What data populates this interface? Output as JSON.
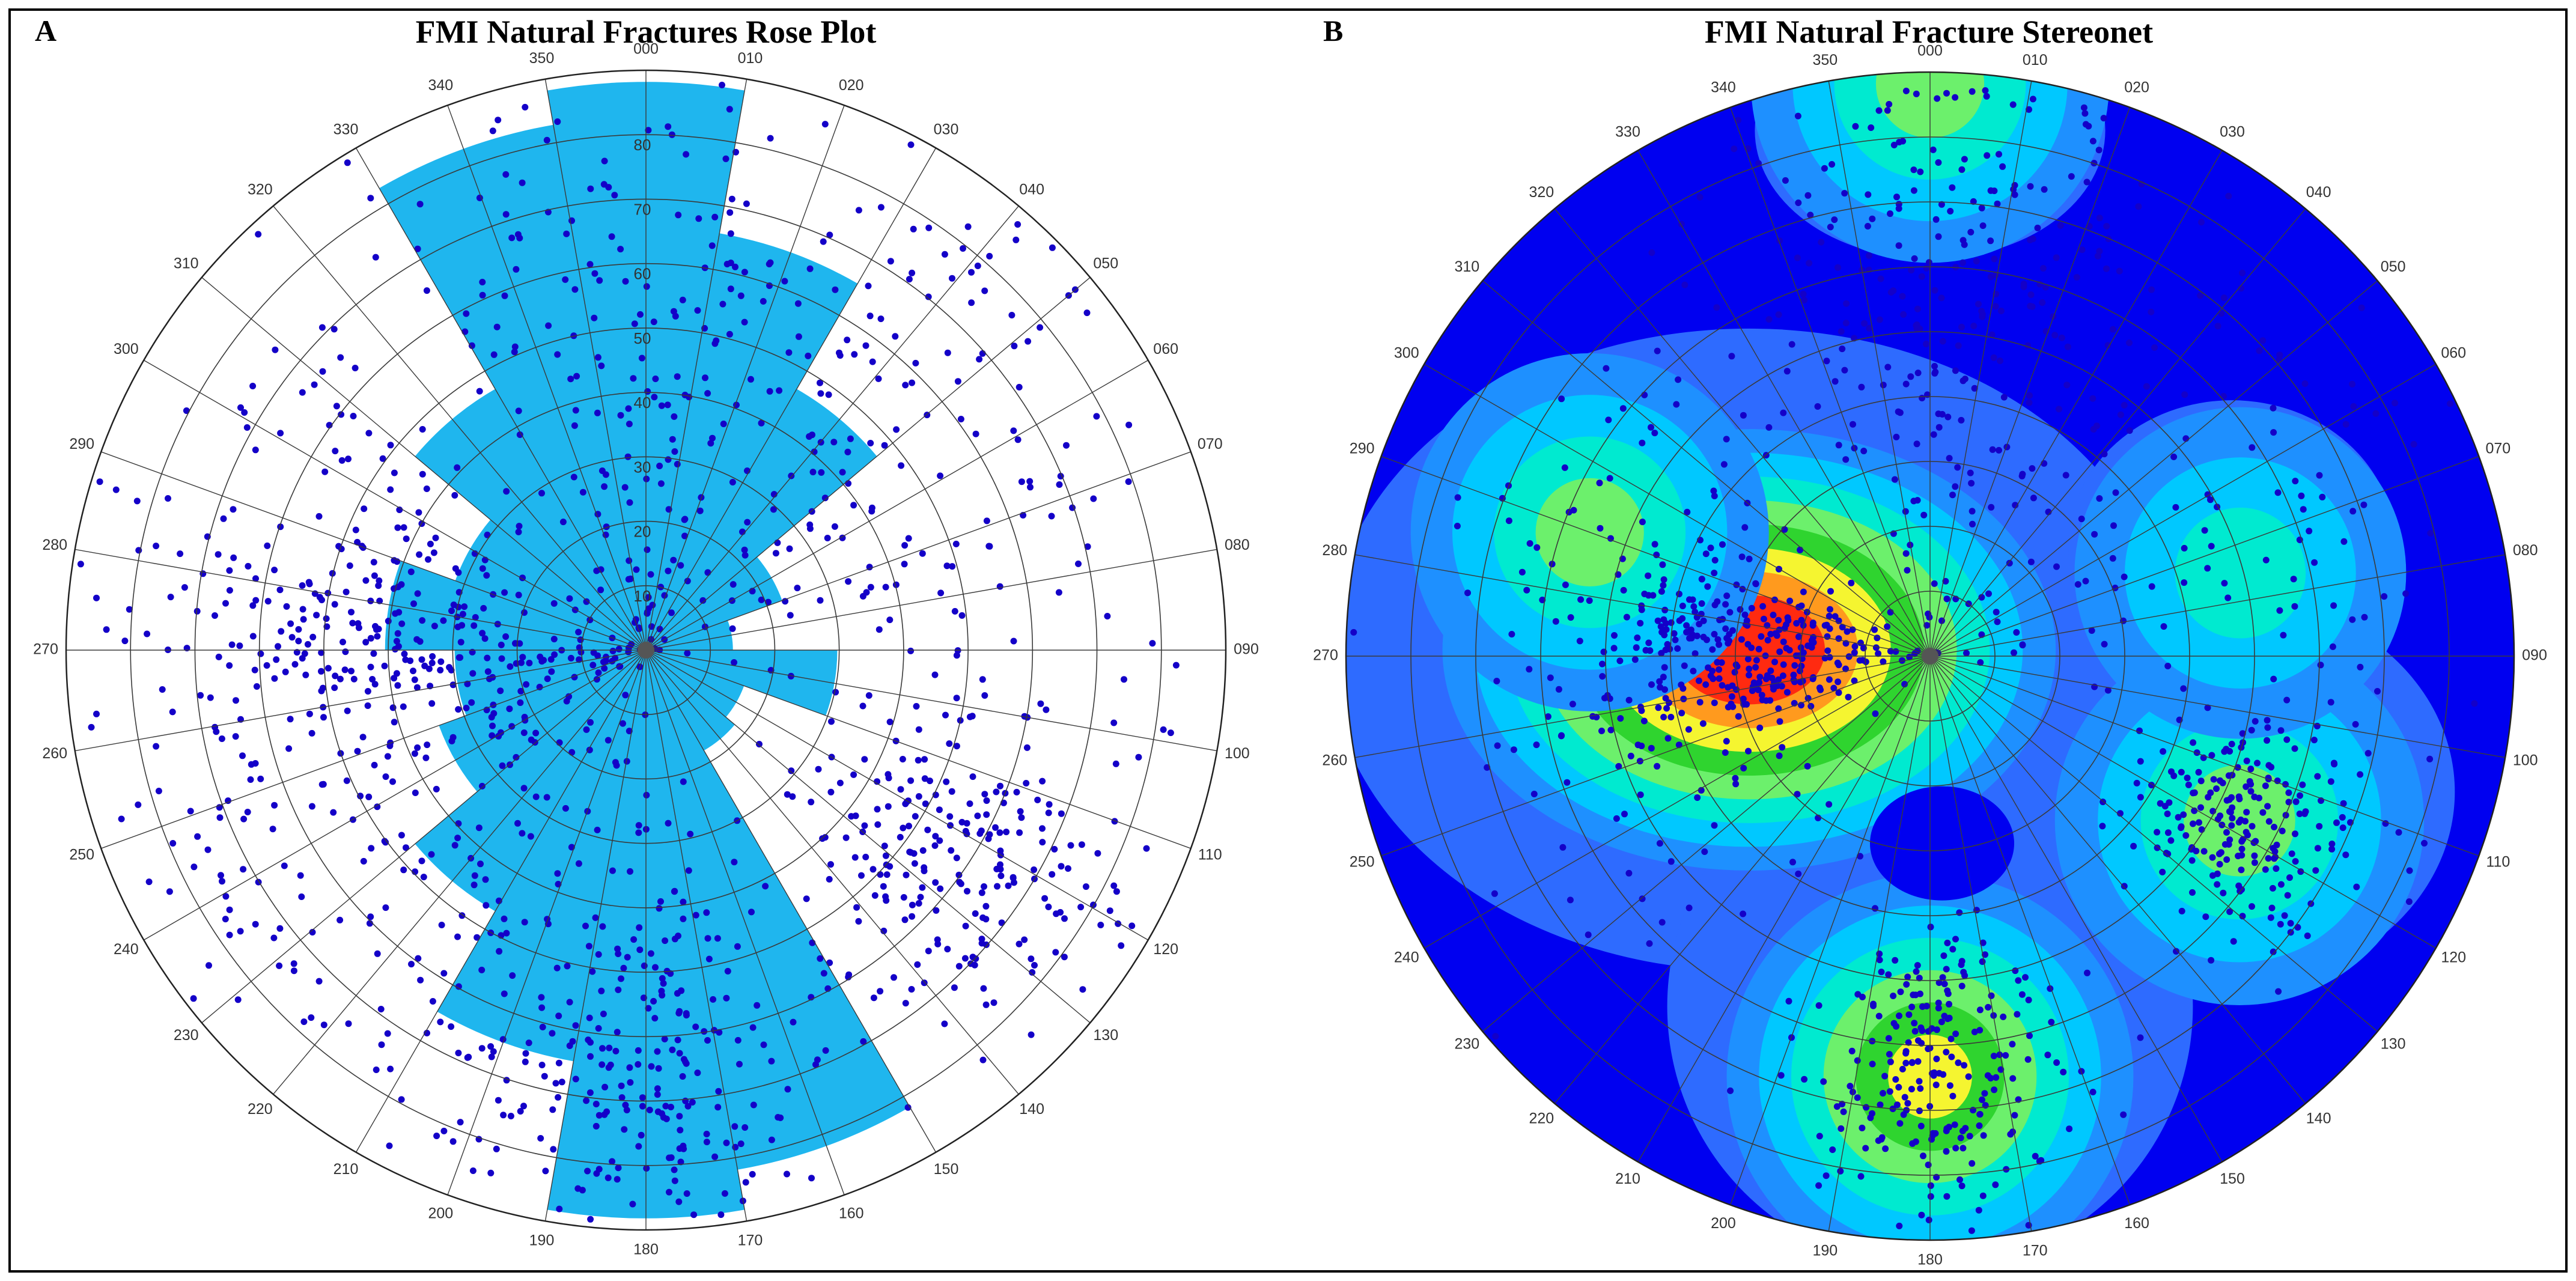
{
  "panels": {
    "a": {
      "letter": "A",
      "title": "FMI Natural Fractures Rose Plot"
    },
    "b": {
      "letter": "B",
      "title": "FMI Natural Fracture Stereonet"
    }
  },
  "colors": {
    "petal": "#1FB6EE",
    "point": "#1400C8",
    "grid": "#3a3a3a",
    "contour": [
      "#0000F0",
      "#2E6BFF",
      "#1E90FF",
      "#00C8FF",
      "#00EAD0",
      "#6CF06C",
      "#2FD42F",
      "#F5F530",
      "#FF9A1E",
      "#FF2A10"
    ]
  },
  "chart_data": [
    {
      "type": "rose",
      "title": "FMI Natural Fractures Rose Plot",
      "azimuth_ticks": [
        "000",
        "010",
        "020",
        "030",
        "040",
        "050",
        "060",
        "070",
        "080",
        "090",
        "100",
        "110",
        "120",
        "130",
        "140",
        "150",
        "160",
        "170",
        "180",
        "190",
        "200",
        "210",
        "220",
        "230",
        "240",
        "250",
        "260",
        "270",
        "280",
        "290",
        "300",
        "310",
        "320",
        "330",
        "340",
        "350"
      ],
      "dip_ring_labels": [
        "10",
        "20",
        "30",
        "40",
        "50",
        "60",
        "70",
        "80"
      ],
      "bin_width_deg": 20,
      "petals": [
        {
          "azimuth": 0,
          "relative_length": 0.98
        },
        {
          "azimuth": 20,
          "relative_length": 0.73
        },
        {
          "azimuth": 40,
          "relative_length": 0.52
        },
        {
          "azimuth": 60,
          "relative_length": 0.25
        },
        {
          "azimuth": 80,
          "relative_length": 0.15
        },
        {
          "azimuth": 100,
          "relative_length": 0.33
        },
        {
          "azimuth": 120,
          "relative_length": 0.18
        },
        {
          "azimuth": 140,
          "relative_length": 0.2
        },
        {
          "azimuth": 160,
          "relative_length": 0.91
        },
        {
          "azimuth": 180,
          "relative_length": 0.98
        },
        {
          "azimuth": 200,
          "relative_length": 0.72
        },
        {
          "azimuth": 220,
          "relative_length": 0.52
        },
        {
          "azimuth": 240,
          "relative_length": 0.38
        },
        {
          "azimuth": 260,
          "relative_length": 0.33
        },
        {
          "azimuth": 280,
          "relative_length": 0.45
        },
        {
          "azimuth": 300,
          "relative_length": 0.35
        },
        {
          "azimuth": 320,
          "relative_length": 0.52
        },
        {
          "azimuth": 340,
          "relative_length": 0.92
        }
      ]
    },
    {
      "type": "heatmap",
      "title": "FMI Natural Fracture Stereonet",
      "azimuth_ticks": [
        "000",
        "010",
        "020",
        "030",
        "040",
        "050",
        "060",
        "070",
        "080",
        "090",
        "100",
        "110",
        "120",
        "130",
        "140",
        "150",
        "160",
        "170",
        "180",
        "190",
        "200",
        "210",
        "220",
        "230",
        "240",
        "250",
        "260",
        "270",
        "280",
        "290",
        "300",
        "310",
        "320",
        "330",
        "340",
        "350"
      ],
      "density_peaks": [
        {
          "azimuth": 272,
          "relative_radius": 0.31,
          "strength": 1.0
        },
        {
          "azimuth": 180,
          "relative_radius": 0.72,
          "strength": 0.62
        },
        {
          "azimuth": 118,
          "relative_radius": 0.6,
          "strength": 0.45
        },
        {
          "azimuth": 0,
          "relative_radius": 0.98,
          "strength": 0.4
        },
        {
          "azimuth": 290,
          "relative_radius": 0.62,
          "strength": 0.4
        },
        {
          "azimuth": 75,
          "relative_radius": 0.55,
          "strength": 0.28
        }
      ]
    }
  ]
}
